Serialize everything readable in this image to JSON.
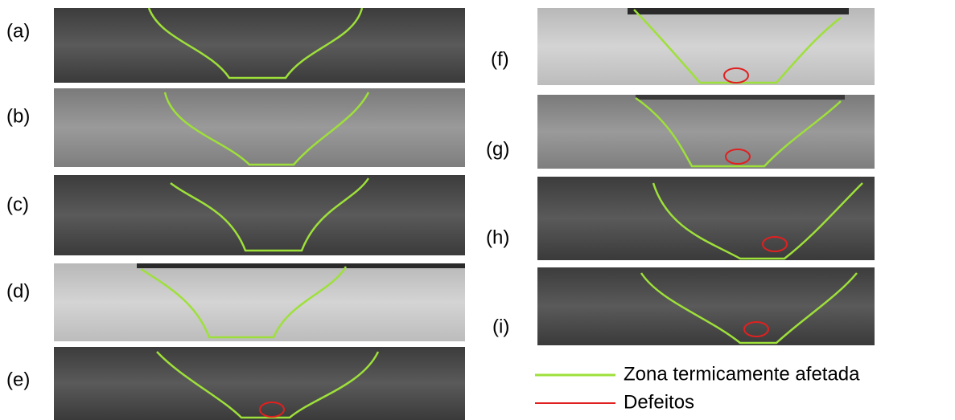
{
  "panels": [
    {
      "label": "(a)"
    },
    {
      "label": "(b)"
    },
    {
      "label": "(c)"
    },
    {
      "label": "(d)"
    },
    {
      "label": "(e)"
    },
    {
      "label": "(f)"
    },
    {
      "label": "(g)"
    },
    {
      "label": "(h)"
    },
    {
      "label": "(i)"
    }
  ],
  "legend": [
    {
      "label": "Zona termicamente afetada"
    },
    {
      "label": "Defeitos"
    }
  ]
}
